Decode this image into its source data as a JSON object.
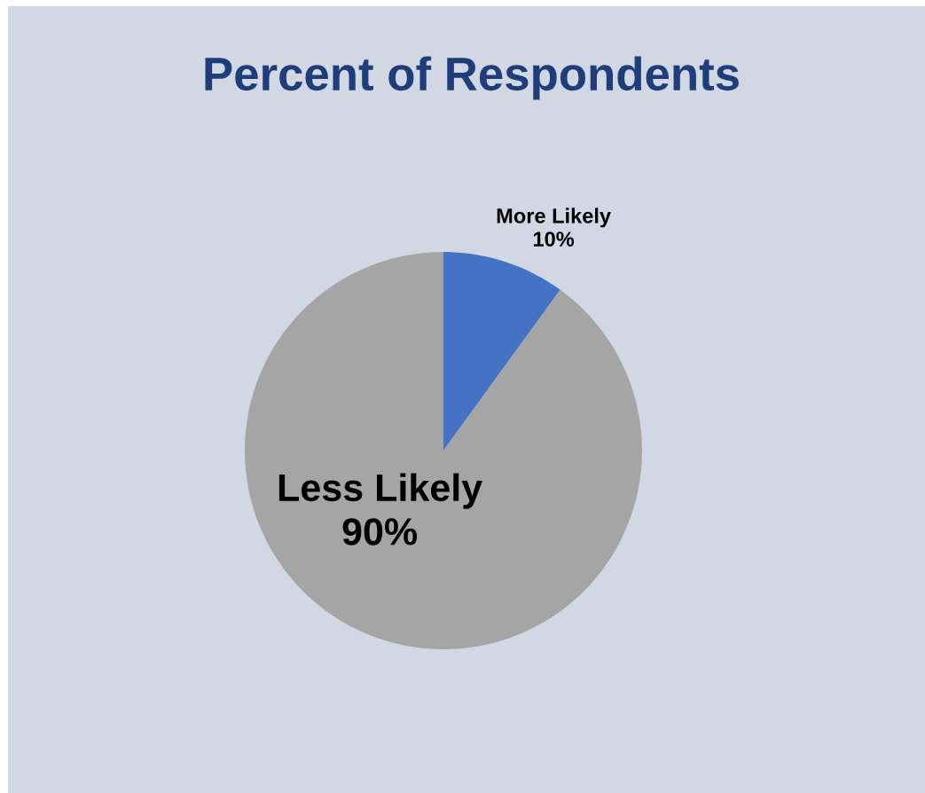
{
  "chart_data": {
    "type": "pie",
    "title": "Percent of Respondents",
    "categories": [
      "More Likely",
      "Less Likely"
    ],
    "values": [
      10,
      90
    ],
    "colors": [
      "#4472c4",
      "#a5a5a5"
    ],
    "value_labels": [
      "10%",
      "90%"
    ],
    "data_labels": true
  }
}
